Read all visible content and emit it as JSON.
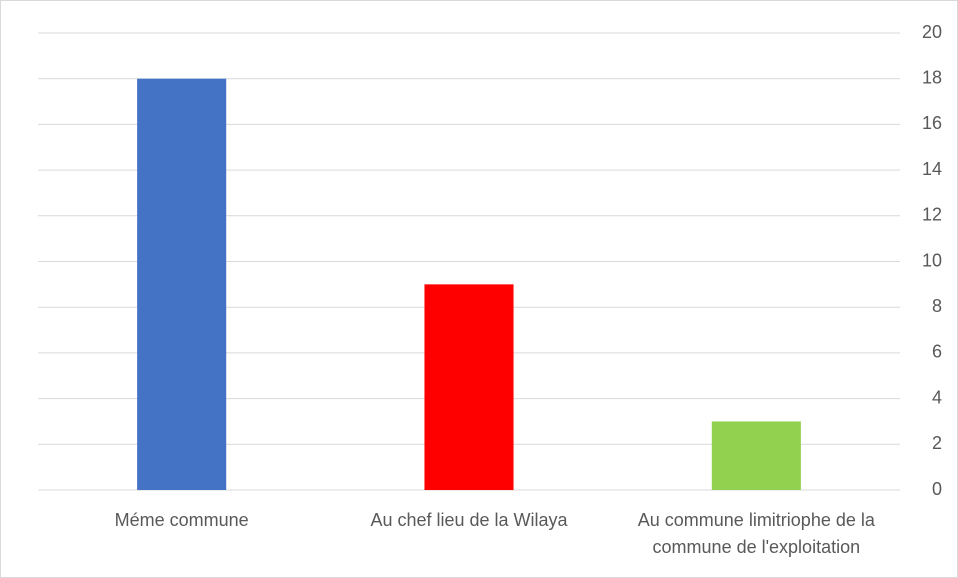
{
  "chart_data": {
    "type": "bar",
    "categories": [
      "Méme commune",
      "Au chef lieu de la Wilaya",
      "Au commune limitriophe de la commune de l'exploitation"
    ],
    "values": [
      18,
      9,
      3
    ],
    "colors": [
      "#4472c4",
      "#ff0000",
      "#92d050"
    ],
    "ylim": [
      0,
      20
    ],
    "yticks": [
      0,
      2,
      4,
      6,
      8,
      10,
      12,
      14,
      16,
      18,
      20
    ],
    "y_axis_side": "right",
    "grid": true
  }
}
